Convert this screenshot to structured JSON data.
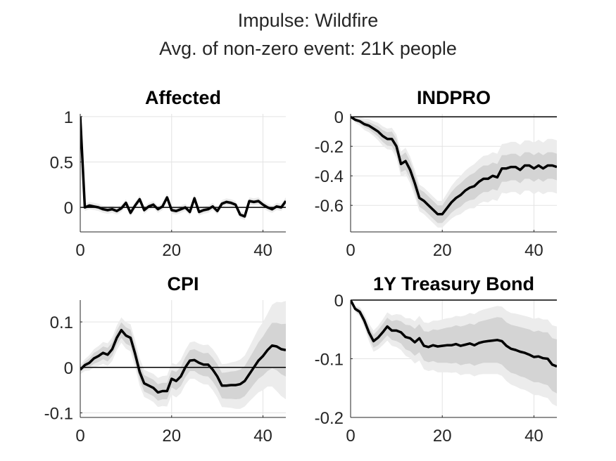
{
  "figure": {
    "title_line1": "Impulse: Wildfire",
    "title_line2": "Avg. of non-zero event: 21K people"
  },
  "colors": {
    "line": "#000000",
    "band_outer": "#ececec",
    "band_inner": "#d4d4d4",
    "axis": "#262626",
    "grid": "#e3e3e3"
  },
  "chart_data": [
    {
      "type": "line",
      "title": "Affected",
      "xlim": [
        0,
        45
      ],
      "ylim": [
        -0.27,
        1.03
      ],
      "xticks": [
        0,
        20,
        40
      ],
      "xtick_labels": [
        "0",
        "20",
        "40"
      ],
      "yticks": [
        1,
        0.5,
        0
      ],
      "ytick_labels": [
        "1",
        "0.5",
        "0"
      ],
      "grid": true,
      "zero_line": true,
      "x": [
        0,
        1,
        2,
        3,
        4,
        5,
        6,
        7,
        8,
        9,
        10,
        11,
        12,
        13,
        14,
        15,
        16,
        17,
        18,
        19,
        20,
        21,
        22,
        23,
        24,
        25,
        26,
        27,
        28,
        29,
        30,
        31,
        32,
        33,
        34,
        35,
        36,
        37,
        38,
        39,
        40,
        41,
        42,
        43,
        44,
        45
      ],
      "y": [
        1.0,
        0.0,
        0.02,
        0.01,
        0.0,
        -0.02,
        -0.03,
        -0.02,
        -0.04,
        -0.01,
        0.05,
        -0.06,
        0.02,
        0.09,
        -0.03,
        0.01,
        0.03,
        -0.02,
        0.01,
        0.11,
        -0.03,
        -0.04,
        -0.02,
        0.0,
        -0.05,
        0.1,
        -0.05,
        -0.03,
        -0.02,
        0.01,
        -0.04,
        0.04,
        0.06,
        0.05,
        0.03,
        -0.08,
        -0.1,
        0.07,
        0.06,
        0.07,
        0.03,
        0.0,
        -0.02,
        0.01,
        0.0,
        0.07
      ],
      "band_inner": 0.02,
      "band_outer": 0.04
    },
    {
      "type": "line",
      "title": "INDPRO",
      "xlim": [
        0,
        45
      ],
      "ylim": [
        -0.78,
        0.02
      ],
      "xticks": [
        0,
        20,
        40
      ],
      "xtick_labels": [
        "0",
        "20",
        "40"
      ],
      "yticks": [
        0,
        -0.2,
        -0.4,
        -0.6
      ],
      "ytick_labels": [
        "0",
        "-0.2",
        "-0.4",
        "-0.6"
      ],
      "grid": true,
      "zero_line": true,
      "x": [
        0,
        1,
        2,
        3,
        4,
        5,
        6,
        7,
        8,
        9,
        10,
        11,
        12,
        13,
        14,
        15,
        16,
        17,
        18,
        19,
        20,
        21,
        22,
        23,
        24,
        25,
        26,
        27,
        28,
        29,
        30,
        31,
        32,
        33,
        34,
        35,
        36,
        37,
        38,
        39,
        40,
        41,
        42,
        43,
        44,
        45
      ],
      "y": [
        0.0,
        -0.02,
        -0.03,
        -0.05,
        -0.06,
        -0.08,
        -0.1,
        -0.13,
        -0.15,
        -0.15,
        -0.2,
        -0.32,
        -0.3,
        -0.36,
        -0.45,
        -0.55,
        -0.57,
        -0.6,
        -0.63,
        -0.66,
        -0.66,
        -0.62,
        -0.58,
        -0.55,
        -0.53,
        -0.5,
        -0.48,
        -0.47,
        -0.44,
        -0.42,
        -0.42,
        -0.4,
        -0.41,
        -0.35,
        -0.35,
        -0.34,
        -0.34,
        -0.36,
        -0.33,
        -0.33,
        -0.35,
        -0.33,
        -0.35,
        -0.33,
        -0.33,
        -0.34
      ],
      "band_inner": [
        0.0,
        0.01,
        0.015,
        0.02,
        0.025,
        0.03,
        0.035,
        0.04,
        0.045,
        0.05,
        0.05,
        0.055,
        0.06,
        0.06,
        0.06,
        0.06,
        0.06,
        0.06,
        0.06,
        0.06,
        0.06,
        0.065,
        0.07,
        0.075,
        0.08,
        0.08,
        0.085,
        0.09,
        0.09,
        0.09,
        0.09,
        0.09,
        0.09,
        0.09,
        0.09,
        0.09,
        0.09,
        0.09,
        0.09,
        0.09,
        0.09,
        0.09,
        0.09,
        0.09,
        0.09,
        0.09
      ],
      "band_outer": [
        0.0,
        0.02,
        0.03,
        0.04,
        0.045,
        0.05,
        0.06,
        0.065,
        0.07,
        0.075,
        0.08,
        0.085,
        0.09,
        0.09,
        0.09,
        0.09,
        0.09,
        0.09,
        0.09,
        0.09,
        0.09,
        0.1,
        0.11,
        0.12,
        0.13,
        0.135,
        0.14,
        0.15,
        0.15,
        0.155,
        0.16,
        0.16,
        0.16,
        0.165,
        0.17,
        0.17,
        0.17,
        0.17,
        0.17,
        0.17,
        0.175,
        0.175,
        0.175,
        0.18,
        0.18,
        0.18
      ]
    },
    {
      "type": "line",
      "title": "CPI",
      "xlim": [
        0,
        45
      ],
      "ylim": [
        -0.11,
        0.148
      ],
      "xticks": [
        0,
        20,
        40
      ],
      "xtick_labels": [
        "0",
        "20",
        "40"
      ],
      "yticks": [
        0.1,
        0,
        -0.1
      ],
      "ytick_labels": [
        "0.1",
        "0",
        "-0.1"
      ],
      "grid": true,
      "zero_line": true,
      "x": [
        0,
        1,
        2,
        3,
        4,
        5,
        6,
        7,
        8,
        9,
        10,
        11,
        12,
        13,
        14,
        15,
        16,
        17,
        18,
        19,
        20,
        21,
        22,
        23,
        24,
        25,
        26,
        27,
        28,
        29,
        30,
        31,
        32,
        33,
        34,
        35,
        36,
        37,
        38,
        39,
        40,
        41,
        42,
        43,
        44,
        45
      ],
      "y": [
        -0.005,
        0.005,
        0.01,
        0.02,
        0.025,
        0.032,
        0.028,
        0.04,
        0.065,
        0.082,
        0.07,
        0.065,
        0.03,
        -0.01,
        -0.035,
        -0.04,
        -0.045,
        -0.055,
        -0.052,
        -0.052,
        -0.025,
        -0.03,
        -0.02,
        0.0,
        0.015,
        0.016,
        0.01,
        0.006,
        0.006,
        -0.005,
        -0.02,
        -0.04,
        -0.04,
        -0.039,
        -0.039,
        -0.037,
        -0.03,
        -0.015,
        0.0,
        0.015,
        0.025,
        0.038,
        0.048,
        0.046,
        0.04,
        0.038
      ],
      "band_inner": [
        0.005,
        0.007,
        0.01,
        0.012,
        0.013,
        0.014,
        0.015,
        0.015,
        0.016,
        0.017,
        0.018,
        0.018,
        0.018,
        0.018,
        0.018,
        0.018,
        0.018,
        0.018,
        0.018,
        0.018,
        0.019,
        0.02,
        0.021,
        0.022,
        0.023,
        0.024,
        0.025,
        0.025,
        0.026,
        0.026,
        0.027,
        0.028,
        0.029,
        0.03,
        0.031,
        0.032,
        0.033,
        0.035,
        0.037,
        0.04,
        0.043,
        0.046,
        0.05,
        0.052,
        0.055,
        0.058
      ],
      "band_outer": [
        0.01,
        0.013,
        0.017,
        0.02,
        0.022,
        0.024,
        0.025,
        0.026,
        0.027,
        0.028,
        0.029,
        0.03,
        0.03,
        0.03,
        0.03,
        0.03,
        0.031,
        0.032,
        0.033,
        0.034,
        0.035,
        0.036,
        0.037,
        0.038,
        0.04,
        0.041,
        0.042,
        0.043,
        0.044,
        0.045,
        0.046,
        0.047,
        0.048,
        0.05,
        0.052,
        0.054,
        0.056,
        0.06,
        0.065,
        0.07,
        0.075,
        0.08,
        0.09,
        0.098,
        0.103,
        0.108
      ]
    },
    {
      "type": "line",
      "title": "1Y Treasury Bond",
      "xlim": [
        0,
        45
      ],
      "ylim": [
        -0.2,
        0.0
      ],
      "xticks": [
        0,
        20,
        40
      ],
      "xtick_labels": [
        "0",
        "20",
        "40"
      ],
      "yticks": [
        0,
        -0.1,
        -0.2
      ],
      "ytick_labels": [
        "0",
        "-0.1",
        "-0.2"
      ],
      "grid": true,
      "zero_line": true,
      "x": [
        0,
        1,
        2,
        3,
        4,
        5,
        6,
        7,
        8,
        9,
        10,
        11,
        12,
        13,
        14,
        15,
        16,
        17,
        18,
        19,
        20,
        21,
        22,
        23,
        24,
        25,
        26,
        27,
        28,
        29,
        30,
        31,
        32,
        33,
        34,
        35,
        36,
        37,
        38,
        39,
        40,
        41,
        42,
        43,
        44,
        45
      ],
      "y": [
        0.0,
        -0.015,
        -0.02,
        -0.035,
        -0.055,
        -0.07,
        -0.064,
        -0.055,
        -0.045,
        -0.052,
        -0.052,
        -0.055,
        -0.063,
        -0.065,
        -0.072,
        -0.065,
        -0.078,
        -0.08,
        -0.077,
        -0.079,
        -0.078,
        -0.077,
        -0.077,
        -0.075,
        -0.078,
        -0.076,
        -0.074,
        -0.077,
        -0.073,
        -0.071,
        -0.07,
        -0.069,
        -0.068,
        -0.07,
        -0.078,
        -0.083,
        -0.085,
        -0.088,
        -0.09,
        -0.093,
        -0.097,
        -0.096,
        -0.099,
        -0.1,
        -0.11,
        -0.113
      ],
      "band_inner": [
        0.0,
        0.003,
        0.005,
        0.007,
        0.009,
        0.011,
        0.013,
        0.014,
        0.015,
        0.016,
        0.018,
        0.019,
        0.021,
        0.022,
        0.023,
        0.024,
        0.025,
        0.026,
        0.027,
        0.028,
        0.029,
        0.03,
        0.031,
        0.032,
        0.033,
        0.033,
        0.034,
        0.035,
        0.036,
        0.036,
        0.037,
        0.038,
        0.039,
        0.04,
        0.04,
        0.041,
        0.041,
        0.042,
        0.042,
        0.043,
        0.043,
        0.044,
        0.044,
        0.045,
        0.045,
        0.046
      ],
      "band_outer": [
        0.0,
        0.005,
        0.008,
        0.012,
        0.015,
        0.018,
        0.02,
        0.022,
        0.024,
        0.026,
        0.028,
        0.03,
        0.032,
        0.034,
        0.036,
        0.038,
        0.04,
        0.041,
        0.042,
        0.044,
        0.045,
        0.046,
        0.047,
        0.048,
        0.05,
        0.05,
        0.052,
        0.053,
        0.054,
        0.055,
        0.056,
        0.057,
        0.058,
        0.059,
        0.06,
        0.061,
        0.062,
        0.063,
        0.063,
        0.064,
        0.065,
        0.066,
        0.066,
        0.067,
        0.067,
        0.068
      ]
    }
  ]
}
